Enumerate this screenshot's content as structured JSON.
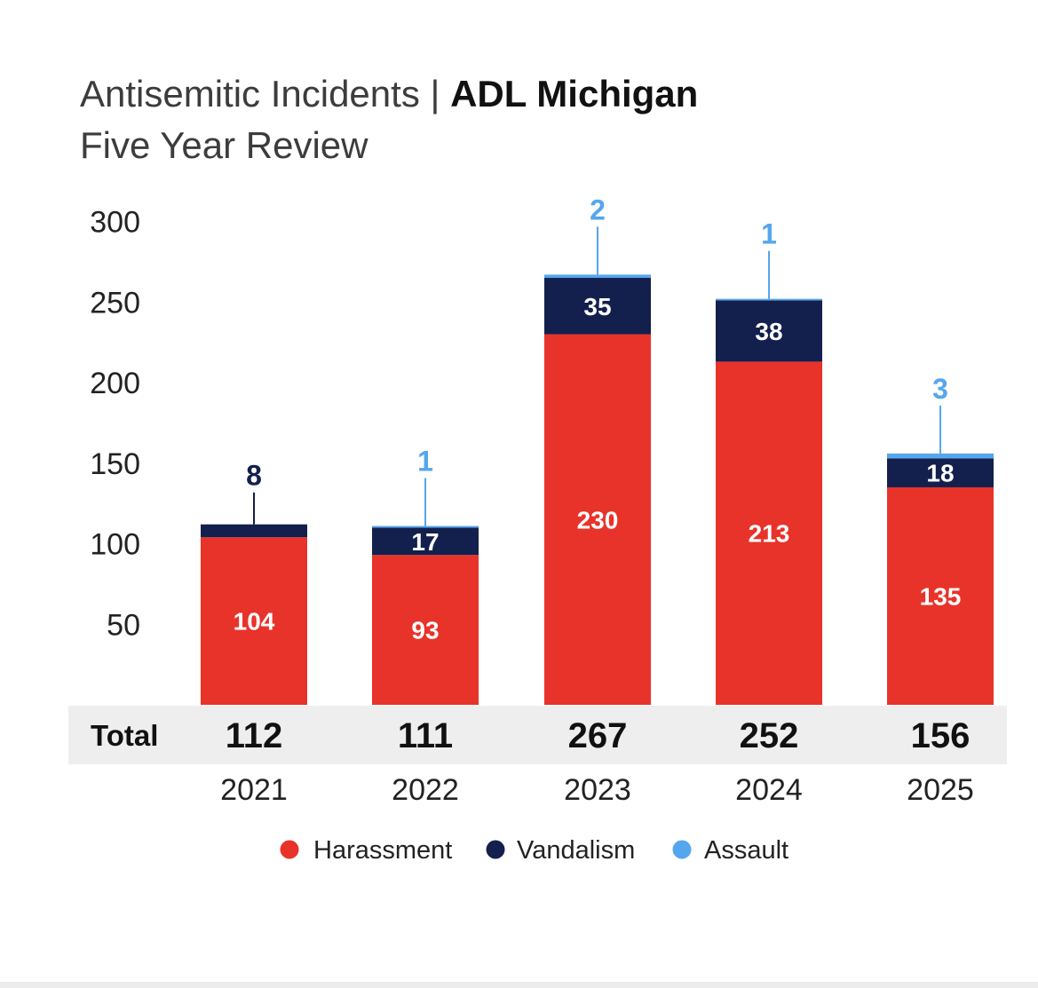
{
  "title": {
    "main": "Antisemitic Incidents | ",
    "bold": "ADL Michigan",
    "subtitle": "Five Year Review"
  },
  "colors": {
    "harassment": "#e8332a",
    "vandalism": "#13204d",
    "assault": "#55a6ee",
    "total_row_bg": "#eeeeee"
  },
  "chart_data": {
    "type": "bar",
    "stacked": true,
    "categories": [
      "2021",
      "2022",
      "2023",
      "2024",
      "2025"
    ],
    "series": [
      {
        "name": "Harassment",
        "color_key": "harassment",
        "values": [
          104,
          93,
          230,
          213,
          135
        ]
      },
      {
        "name": "Vandalism",
        "color_key": "vandalism",
        "values": [
          8,
          17,
          35,
          38,
          18
        ]
      },
      {
        "name": "Assault",
        "color_key": "assault",
        "values": [
          0,
          1,
          2,
          1,
          3
        ]
      }
    ],
    "totals_label": "Total",
    "totals": [
      112,
      111,
      267,
      252,
      156
    ],
    "yticks": [
      50,
      100,
      150,
      200,
      250,
      300
    ],
    "ylim": [
      0,
      300
    ],
    "grid": false,
    "legend_position": "bottom"
  },
  "legend": [
    {
      "label": "Harassment",
      "color_key": "harassment"
    },
    {
      "label": "Vandalism",
      "color_key": "vandalism"
    },
    {
      "label": "Assault",
      "color_key": "assault"
    }
  ]
}
